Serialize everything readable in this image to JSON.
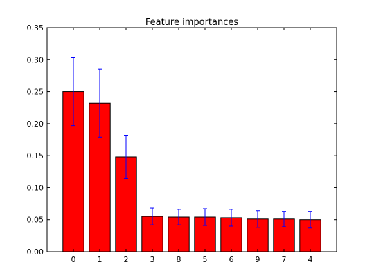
{
  "chart_data": {
    "type": "bar",
    "title": "Feature importances",
    "xlabel": "",
    "ylabel": "",
    "categories": [
      "0",
      "1",
      "2",
      "3",
      "8",
      "5",
      "6",
      "9",
      "7",
      "4"
    ],
    "values": [
      0.25,
      0.232,
      0.148,
      0.055,
      0.054,
      0.054,
      0.053,
      0.051,
      0.051,
      0.05
    ],
    "errors": [
      0.053,
      0.053,
      0.034,
      0.013,
      0.012,
      0.013,
      0.013,
      0.013,
      0.012,
      0.013
    ],
    "ylim": [
      0,
      0.35
    ],
    "yticks": [
      "0.00",
      "0.05",
      "0.10",
      "0.15",
      "0.20",
      "0.25",
      "0.30",
      "0.35"
    ],
    "bar_color": "#ff0000",
    "error_color": "#0000ff",
    "grid": false,
    "legend": "none"
  }
}
